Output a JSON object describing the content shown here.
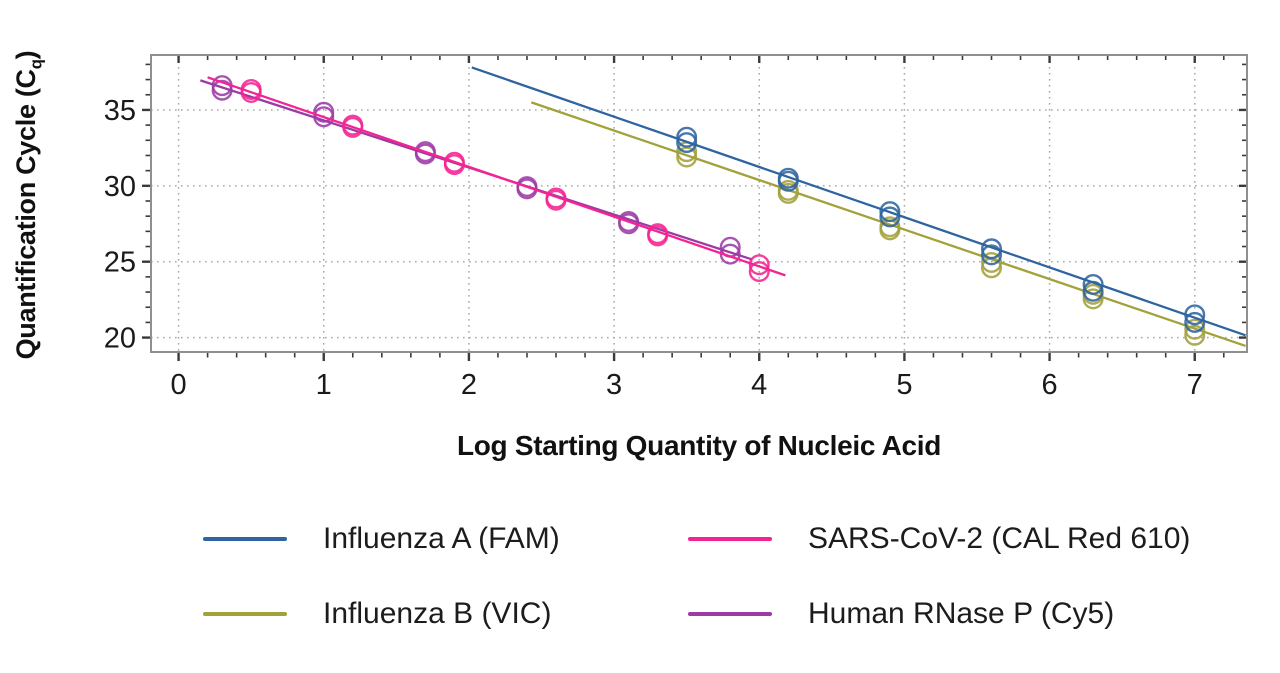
{
  "chart_data": {
    "type": "scatter",
    "title": "",
    "xlabel": "Log Starting Quantity of Nucleic Acid",
    "ylabel": "Quantification Cycle (Cq)",
    "ylabel_parts": {
      "pre": "Quantification Cycle (C",
      "sub": "q",
      "post": ")"
    },
    "xlim": [
      -0.19,
      7.36
    ],
    "ylim": [
      19.05,
      38.62
    ],
    "x_ticks": [
      0,
      1,
      2,
      3,
      4,
      5,
      6,
      7
    ],
    "x_tick_labels": [
      "0",
      "1",
      "2",
      "3",
      "4",
      "5",
      "6",
      "7"
    ],
    "x_minor_step": 0.2,
    "y_ticks": [
      20,
      25,
      30,
      35
    ],
    "y_tick_labels": [
      "20",
      "25",
      "30",
      "35"
    ],
    "y_minor_step": 1,
    "grid": "dotted-major-both",
    "legend_position": "bottom",
    "legend_columns": [
      [
        0,
        1
      ],
      [
        2,
        3
      ]
    ],
    "series": [
      {
        "name": "Influenza A (FAM)",
        "color": "#2e649f",
        "marker": "open-circle",
        "points": [
          [
            3.5,
            33.2
          ],
          [
            3.5,
            32.85
          ],
          [
            4.2,
            30.5
          ],
          [
            4.2,
            30.3
          ],
          [
            4.9,
            28.3
          ],
          [
            4.9,
            27.95
          ],
          [
            5.6,
            25.85
          ],
          [
            5.6,
            25.45
          ],
          [
            6.3,
            23.5
          ],
          [
            6.3,
            23.05
          ],
          [
            7.0,
            21.5
          ],
          [
            7.0,
            21.0
          ]
        ],
        "trendline": [
          [
            2.02,
            37.8
          ],
          [
            7.35,
            20.15
          ]
        ]
      },
      {
        "name": "Influenza B (VIC)",
        "color": "#a2a13b",
        "marker": "open-circle",
        "points": [
          [
            3.5,
            32.25
          ],
          [
            3.5,
            31.9
          ],
          [
            4.2,
            29.7
          ],
          [
            4.2,
            29.5
          ],
          [
            4.9,
            27.3
          ],
          [
            4.9,
            27.1
          ],
          [
            5.6,
            24.95
          ],
          [
            5.6,
            24.6
          ],
          [
            6.3,
            22.85
          ],
          [
            6.3,
            22.55
          ],
          [
            7.0,
            20.55
          ],
          [
            7.0,
            20.15
          ]
        ],
        "trendline": [
          [
            2.43,
            35.5
          ],
          [
            7.35,
            19.45
          ]
        ]
      },
      {
        "name": "SARS-CoV-2 (CAL Red 610)",
        "color": "#f52392",
        "marker": "open-circle",
        "points": [
          [
            0.5,
            36.35
          ],
          [
            0.5,
            36.15
          ],
          [
            1.2,
            34.0
          ],
          [
            1.2,
            33.85
          ],
          [
            1.9,
            31.55
          ],
          [
            1.9,
            31.4
          ],
          [
            2.6,
            29.2
          ],
          [
            2.6,
            29.05
          ],
          [
            3.3,
            26.85
          ],
          [
            3.3,
            26.7
          ],
          [
            4.0,
            24.8
          ],
          [
            4.0,
            24.35
          ]
        ],
        "trendline": [
          [
            0.2,
            37.15
          ],
          [
            4.18,
            24.1
          ]
        ]
      },
      {
        "name": "Human RNase P (Cy5)",
        "color": "#9c3ba6",
        "marker": "open-circle",
        "points": [
          [
            0.3,
            36.6
          ],
          [
            0.3,
            36.3
          ],
          [
            1.0,
            34.85
          ],
          [
            1.0,
            34.55
          ],
          [
            1.7,
            32.25
          ],
          [
            1.7,
            32.1
          ],
          [
            2.4,
            29.95
          ],
          [
            2.4,
            29.8
          ],
          [
            3.1,
            27.65
          ],
          [
            3.1,
            27.5
          ],
          [
            3.8,
            25.95
          ],
          [
            3.8,
            25.5
          ]
        ],
        "trendline": [
          [
            0.15,
            36.95
          ],
          [
            3.95,
            25.15
          ]
        ]
      }
    ],
    "style": {
      "grid_color": "#a8a8a8",
      "frame_color": "#8f8f8f",
      "tick_color": "#3a3a3a",
      "tick_label_color": "#1a1a1a"
    }
  }
}
